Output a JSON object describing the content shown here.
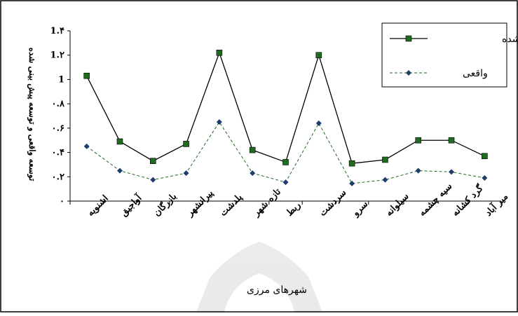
{
  "chart_data": {
    "type": "line",
    "categories": [
      "اشنویه",
      "آواجیق",
      "بازرگان",
      "پیرانشهر",
      "پلدشت",
      "تازه شهر",
      "ربط",
      "سردشت",
      "سرو",
      "سیلوانه",
      "سیه چشمه",
      "گرد کشانه",
      "میر آباد"
    ],
    "series": [
      {
        "name": "پیش بینی شده",
        "values": [
          1.03,
          0.49,
          0.33,
          0.47,
          1.22,
          0.42,
          0.32,
          1.2,
          0.31,
          0.34,
          0.5,
          0.5,
          0.37
        ],
        "color": "#000000",
        "marker": "square",
        "line": "solid"
      },
      {
        "name": "واقعی",
        "values": [
          0.45,
          0.25,
          0.175,
          0.23,
          0.65,
          0.23,
          0.155,
          0.64,
          0.145,
          0.175,
          0.25,
          0.24,
          0.19
        ],
        "color": "#1f3d6b",
        "marker": "diamond",
        "line": "dashed"
      }
    ],
    "yticks": [
      "۰",
      "۰.۲",
      "۰.۴",
      "۰.۶",
      "۰.۸",
      "1",
      "1.۲",
      "1.۴"
    ],
    "ylim": [
      0,
      1.4
    ],
    "xlabel": "شهرهای مرزی",
    "ylabel": "توسعه واقعی و توسعه پیش بینی شده",
    "legend_position": "top-right",
    "grid": false
  }
}
